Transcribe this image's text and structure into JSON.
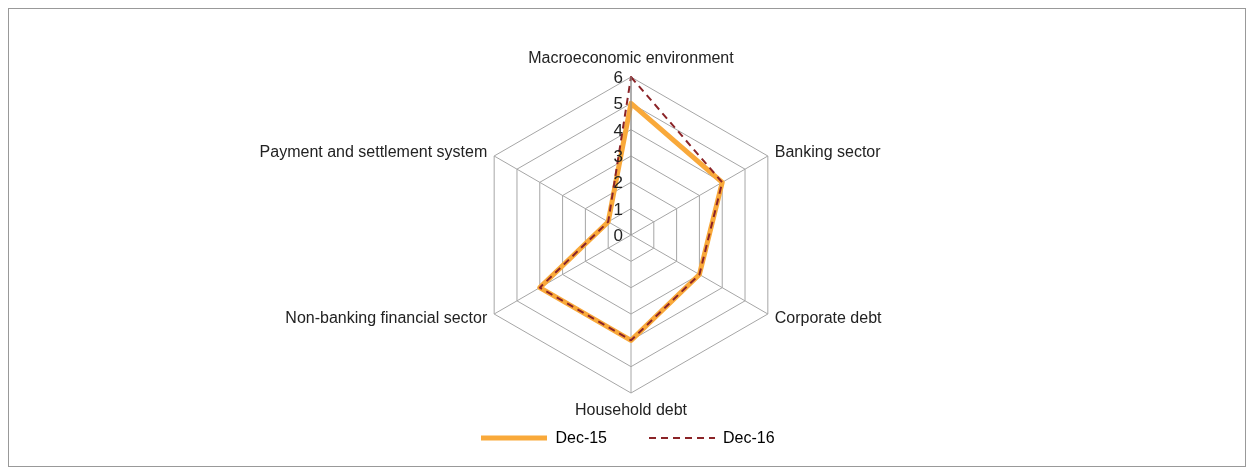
{
  "chart_data": {
    "type": "radar",
    "categories": [
      "Macroeconomic environment",
      "Banking sector",
      "Corporate debt",
      "Household debt",
      "Non-banking financial sector",
      "Payment and settlement system"
    ],
    "series": [
      {
        "name": "Dec-15",
        "color": "#f9a93a",
        "values": [
          5,
          4,
          3,
          4,
          4,
          1
        ],
        "line_style": "solid"
      },
      {
        "name": "Dec-16",
        "color": "#8b2327",
        "values": [
          6,
          4,
          3,
          4,
          4,
          1
        ],
        "line_style": "dashed"
      }
    ],
    "ylim": [
      0,
      6
    ],
    "yticks": [
      0,
      1,
      2,
      3,
      4,
      5,
      6
    ],
    "grid": true,
    "legend": "bottom",
    "marker": "none"
  }
}
